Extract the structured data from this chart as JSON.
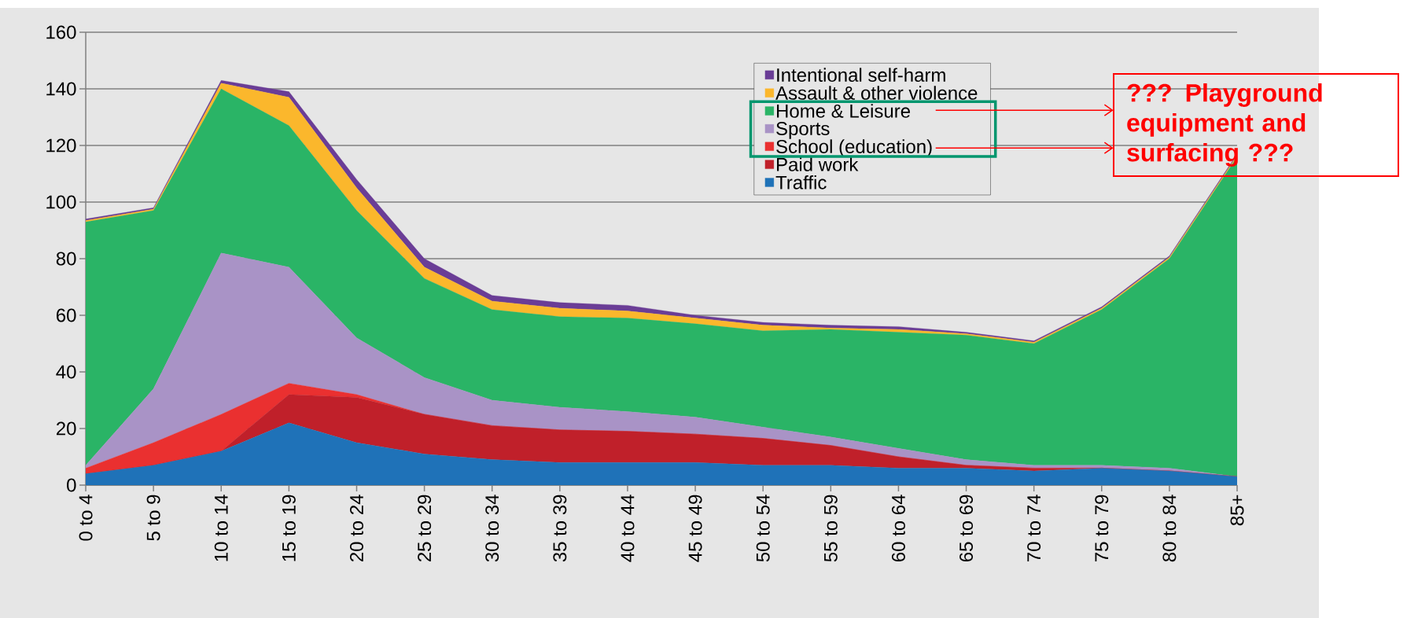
{
  "chart_data": {
    "type": "area",
    "stacked": true,
    "categories": [
      "0 to 4",
      "5 to 9",
      "10 to 14",
      "15 to 19",
      "20 to 24",
      "25 to 29",
      "30 to 34",
      "35 to 39",
      "40 to 44",
      "45 to 49",
      "50 to 54",
      "55 to 59",
      "60 to 64",
      "65 to 69",
      "70 to 74",
      "75 to 79",
      "80 to 84",
      "85+"
    ],
    "series": [
      {
        "name": "Traffic",
        "color": "#1f72b8",
        "values": [
          4,
          7,
          12,
          22,
          15,
          11,
          9,
          8,
          8,
          8,
          7,
          7,
          6,
          6,
          5,
          6,
          5,
          3
        ]
      },
      {
        "name": "Paid work",
        "color": "#c0202a",
        "values": [
          0,
          0,
          0,
          10,
          16,
          14,
          12,
          11.5,
          11,
          10,
          9.5,
          7,
          4,
          1,
          1,
          0,
          0,
          0
        ]
      },
      {
        "name": "School (education)",
        "color": "#ea3030",
        "values": [
          2,
          8,
          13,
          4,
          1,
          0,
          0,
          0,
          0,
          0,
          0,
          0,
          0,
          0,
          0,
          0,
          0,
          0
        ]
      },
      {
        "name": "Sports",
        "color": "#a993c6",
        "values": [
          1,
          19,
          57,
          41,
          20,
          13,
          9,
          8,
          7,
          6,
          4,
          3,
          3,
          2,
          1,
          1,
          1,
          0
        ]
      },
      {
        "name": "Home & Leisure",
        "color": "#2ab466",
        "values": [
          86,
          63,
          58,
          50,
          45,
          35,
          32,
          32,
          33,
          33,
          34,
          38,
          41,
          44,
          43,
          55,
          74,
          113
        ]
      },
      {
        "name": "Assault & other violence",
        "color": "#fbb72c",
        "values": [
          0.5,
          0.5,
          2,
          10,
          8,
          4,
          3,
          3,
          2.5,
          2,
          2,
          0.5,
          1,
          0.5,
          0.5,
          0.5,
          0.5,
          0.5
        ]
      },
      {
        "name": "Intentional self-harm",
        "color": "#6a3d96",
        "values": [
          0.5,
          0.5,
          1,
          2,
          3,
          3,
          2,
          2,
          2,
          1,
          1,
          1,
          1,
          0.5,
          0.5,
          0.5,
          0.5,
          0.5
        ]
      }
    ],
    "ylim": [
      0,
      160
    ],
    "yticks": [
      0,
      20,
      40,
      60,
      80,
      100,
      120,
      140,
      160
    ],
    "grid": "y",
    "legend": "top right",
    "annotations": [
      "??? Playground equipment and surfacing ???"
    ]
  }
}
